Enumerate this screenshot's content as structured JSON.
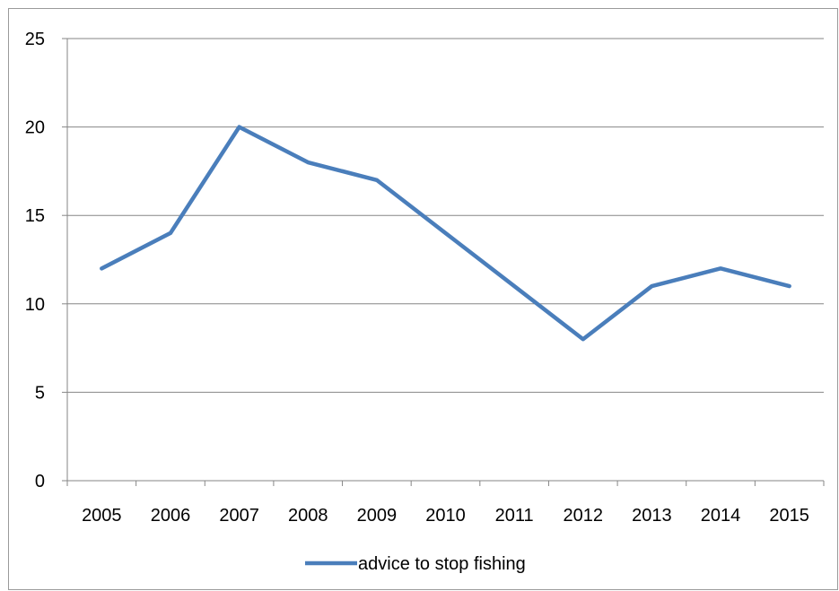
{
  "chart_data": {
    "type": "line",
    "categories": [
      "2005",
      "2006",
      "2007",
      "2008",
      "2009",
      "2010",
      "2011",
      "2012",
      "2013",
      "2014",
      "2015"
    ],
    "series": [
      {
        "name": "advice to stop fishing",
        "values": [
          12,
          14,
          20,
          18,
          17,
          14,
          11,
          8,
          11,
          12,
          11
        ],
        "color": "#4A7EBB"
      }
    ],
    "ylim": [
      0,
      25
    ],
    "yticks": [
      "0",
      "5",
      "10",
      "15",
      "20",
      "25"
    ],
    "grid": "horizontal",
    "legend": "bottom"
  }
}
